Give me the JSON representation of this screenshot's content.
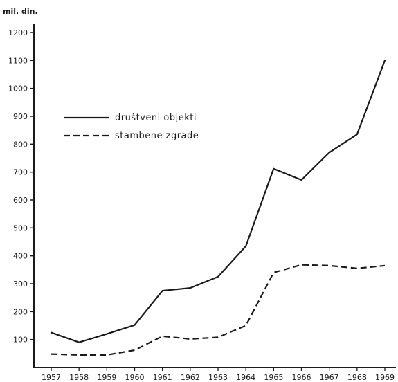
{
  "chart_data": {
    "type": "line",
    "ylabel": "mil. din.",
    "xlabel": "",
    "x": [
      "1957",
      "1958",
      "1959",
      "1960",
      "1961",
      "1962",
      "1963",
      "1964",
      "1965",
      "1966",
      "1967",
      "1968",
      "1969"
    ],
    "yticks": [
      100,
      200,
      300,
      400,
      500,
      600,
      700,
      800,
      900,
      1000,
      1100,
      1200
    ],
    "ylim": [
      0,
      1200
    ],
    "grid": false,
    "legend_position": "upper-left",
    "series": [
      {
        "name": "društveni objekti",
        "style": "solid",
        "values": [
          125,
          90,
          120,
          152,
          275,
          285,
          325,
          435,
          712,
          672,
          770,
          835,
          1100
        ]
      },
      {
        "name": "stambene zgrade",
        "style": "dashed",
        "values": [
          48,
          45,
          45,
          62,
          112,
          102,
          108,
          150,
          340,
          368,
          365,
          355,
          365
        ]
      }
    ]
  }
}
